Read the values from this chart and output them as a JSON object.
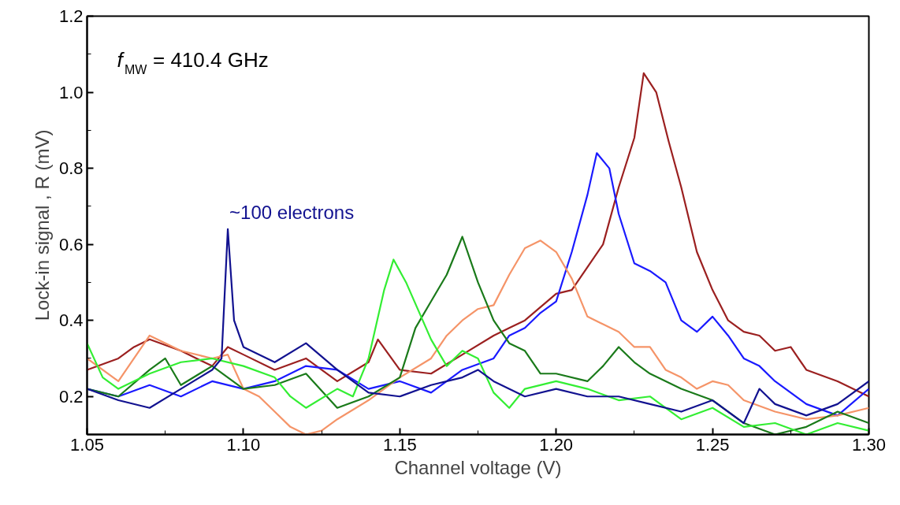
{
  "chart_data": {
    "type": "line",
    "xlabel": "Channel voltage (V)",
    "ylabel": "Lock-in signal , R (mV)",
    "xlim": [
      1.05,
      1.3
    ],
    "ylim": [
      0.1,
      1.2
    ],
    "xticks": [
      1.05,
      {
        "value": 1.1,
        "label": "1.10"
      },
      1.15,
      {
        "value": 1.2,
        "label": "1.20"
      },
      1.25,
      {
        "value": 1.3,
        "label": "1.30"
      }
    ],
    "yticks": [
      0.2,
      0.4,
      0.6,
      0.8,
      {
        "value": 1.0,
        "label": "1.0"
      },
      1.2
    ],
    "grid": false,
    "marker": "none",
    "line_style": "solid",
    "annotations": [
      "f$_{MW}$ = 410.4 GHz",
      {
        "text": "~100 electrons",
        "x": 1.095,
        "y": 0.64
      }
    ],
    "series": [
      {
        "color": "#9b2020",
        "x": [
          1.05,
          1.06,
          1.065,
          1.07,
          1.08,
          1.09,
          1.095,
          1.1,
          1.11,
          1.12,
          1.13,
          1.14,
          1.143,
          1.15,
          1.16,
          1.17,
          1.18,
          1.185,
          1.19,
          1.2,
          1.205,
          1.21,
          1.215,
          1.22,
          1.225,
          1.228,
          1.232,
          1.236,
          1.24,
          1.245,
          1.25,
          1.255,
          1.26,
          1.265,
          1.27,
          1.275,
          1.28,
          1.29,
          1.3
        ],
        "values": [
          0.27,
          0.3,
          0.33,
          0.35,
          0.32,
          0.28,
          0.33,
          0.31,
          0.27,
          0.3,
          0.24,
          0.29,
          0.35,
          0.27,
          0.26,
          0.31,
          0.36,
          0.38,
          0.4,
          0.47,
          0.48,
          0.54,
          0.6,
          0.75,
          0.88,
          1.05,
          1.0,
          0.87,
          0.75,
          0.58,
          0.48,
          0.4,
          0.37,
          0.36,
          0.32,
          0.33,
          0.27,
          0.24,
          0.2
        ]
      },
      {
        "color": "#1a1aff",
        "x": [
          1.05,
          1.06,
          1.07,
          1.08,
          1.09,
          1.1,
          1.11,
          1.12,
          1.13,
          1.14,
          1.15,
          1.16,
          1.17,
          1.18,
          1.185,
          1.19,
          1.195,
          1.2,
          1.205,
          1.21,
          1.213,
          1.217,
          1.22,
          1.225,
          1.23,
          1.235,
          1.24,
          1.245,
          1.25,
          1.255,
          1.26,
          1.265,
          1.27,
          1.28,
          1.29,
          1.3
        ],
        "values": [
          0.22,
          0.2,
          0.23,
          0.2,
          0.24,
          0.22,
          0.24,
          0.28,
          0.27,
          0.22,
          0.24,
          0.21,
          0.27,
          0.3,
          0.36,
          0.38,
          0.42,
          0.45,
          0.58,
          0.73,
          0.84,
          0.8,
          0.68,
          0.55,
          0.53,
          0.5,
          0.4,
          0.37,
          0.41,
          0.36,
          0.3,
          0.28,
          0.24,
          0.18,
          0.15,
          0.22
        ]
      },
      {
        "color": "#f59468",
        "x": [
          1.05,
          1.06,
          1.07,
          1.08,
          1.09,
          1.095,
          1.1,
          1.105,
          1.11,
          1.115,
          1.12,
          1.125,
          1.13,
          1.14,
          1.15,
          1.16,
          1.165,
          1.17,
          1.175,
          1.18,
          1.185,
          1.19,
          1.195,
          1.2,
          1.205,
          1.21,
          1.215,
          1.22,
          1.225,
          1.23,
          1.235,
          1.24,
          1.245,
          1.25,
          1.255,
          1.26,
          1.27,
          1.28,
          1.29,
          1.3
        ],
        "values": [
          0.3,
          0.24,
          0.36,
          0.32,
          0.3,
          0.31,
          0.22,
          0.2,
          0.16,
          0.12,
          0.1,
          0.11,
          0.14,
          0.19,
          0.25,
          0.3,
          0.36,
          0.4,
          0.43,
          0.44,
          0.52,
          0.59,
          0.61,
          0.58,
          0.51,
          0.41,
          0.39,
          0.37,
          0.33,
          0.33,
          0.27,
          0.25,
          0.22,
          0.24,
          0.23,
          0.19,
          0.16,
          0.14,
          0.15,
          0.17
        ]
      },
      {
        "color": "#1a7a1a",
        "x": [
          1.05,
          1.06,
          1.07,
          1.075,
          1.08,
          1.09,
          1.1,
          1.11,
          1.12,
          1.13,
          1.14,
          1.15,
          1.155,
          1.16,
          1.165,
          1.17,
          1.175,
          1.18,
          1.185,
          1.19,
          1.195,
          1.2,
          1.21,
          1.215,
          1.22,
          1.225,
          1.23,
          1.24,
          1.25,
          1.26,
          1.27,
          1.28,
          1.29,
          1.3
        ],
        "values": [
          0.22,
          0.2,
          0.27,
          0.3,
          0.23,
          0.28,
          0.22,
          0.23,
          0.26,
          0.17,
          0.2,
          0.25,
          0.38,
          0.45,
          0.52,
          0.62,
          0.5,
          0.4,
          0.34,
          0.32,
          0.26,
          0.26,
          0.24,
          0.28,
          0.33,
          0.29,
          0.26,
          0.22,
          0.19,
          0.13,
          0.1,
          0.12,
          0.16,
          0.13
        ]
      },
      {
        "color": "#33ee33",
        "x": [
          1.05,
          1.055,
          1.06,
          1.07,
          1.08,
          1.09,
          1.1,
          1.11,
          1.115,
          1.12,
          1.13,
          1.135,
          1.14,
          1.145,
          1.148,
          1.152,
          1.16,
          1.165,
          1.17,
          1.175,
          1.18,
          1.185,
          1.19,
          1.2,
          1.21,
          1.22,
          1.23,
          1.24,
          1.25,
          1.26,
          1.27,
          1.28,
          1.29,
          1.3
        ],
        "values": [
          0.34,
          0.25,
          0.22,
          0.26,
          0.29,
          0.3,
          0.28,
          0.25,
          0.2,
          0.17,
          0.22,
          0.2,
          0.3,
          0.48,
          0.56,
          0.5,
          0.35,
          0.28,
          0.32,
          0.3,
          0.21,
          0.17,
          0.22,
          0.24,
          0.22,
          0.19,
          0.2,
          0.14,
          0.17,
          0.12,
          0.13,
          0.1,
          0.13,
          0.11
        ]
      },
      {
        "color": "#121290",
        "x": [
          1.05,
          1.06,
          1.07,
          1.08,
          1.09,
          1.093,
          1.095,
          1.097,
          1.1,
          1.11,
          1.12,
          1.13,
          1.14,
          1.15,
          1.16,
          1.17,
          1.175,
          1.18,
          1.19,
          1.2,
          1.21,
          1.22,
          1.23,
          1.24,
          1.25,
          1.26,
          1.265,
          1.27,
          1.28,
          1.29,
          1.3
        ],
        "values": [
          0.22,
          0.19,
          0.17,
          0.22,
          0.27,
          0.3,
          0.64,
          0.4,
          0.33,
          0.29,
          0.34,
          0.27,
          0.21,
          0.2,
          0.23,
          0.25,
          0.27,
          0.24,
          0.2,
          0.22,
          0.2,
          0.2,
          0.18,
          0.16,
          0.19,
          0.13,
          0.22,
          0.18,
          0.15,
          0.18,
          0.24
        ]
      }
    ]
  }
}
